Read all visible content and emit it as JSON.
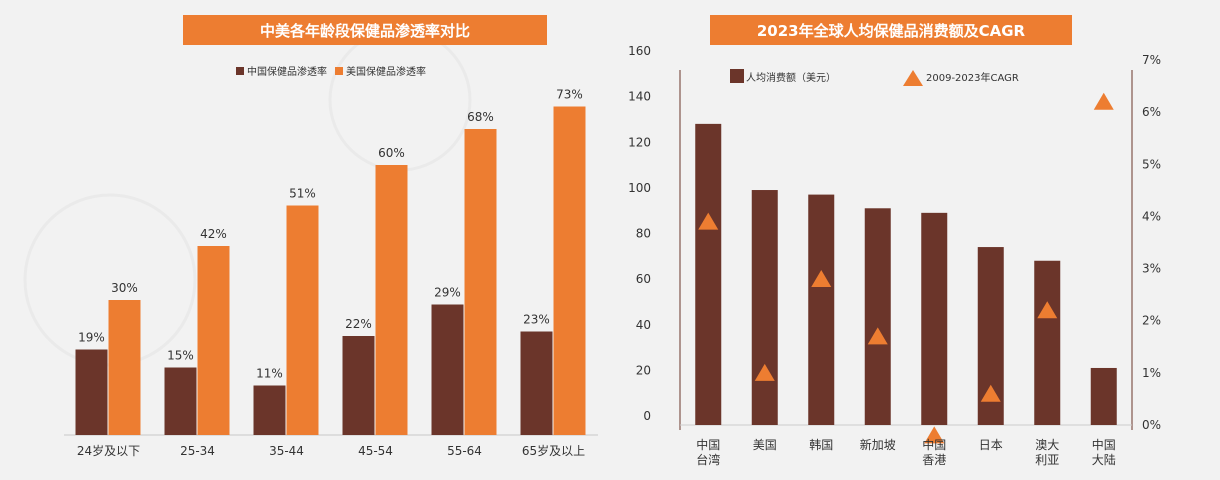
{
  "colors": {
    "china": "#6b352a",
    "usa": "#ed7d31",
    "bg": "#f2f2f2",
    "title_bg": "#ed7d31"
  },
  "chart_data": [
    {
      "type": "bar",
      "title": "中美各年龄段保健品渗透率对比",
      "categories": [
        "24岁及以下",
        "25-34",
        "35-44",
        "45-54",
        "55-64",
        "65岁及以上"
      ],
      "series": [
        {
          "name": "中国保健品渗透率",
          "values": [
            19,
            15,
            11,
            22,
            29,
            23
          ],
          "labels": [
            "19%",
            "15%",
            "11%",
            "22%",
            "29%",
            "23%"
          ]
        },
        {
          "name": "美国保健品渗透率",
          "values": [
            30,
            42,
            51,
            60,
            68,
            73
          ],
          "labels": [
            "30%",
            "42%",
            "51%",
            "60%",
            "68%",
            "73%"
          ]
        }
      ],
      "ylim": [
        0,
        80
      ],
      "legend_position": "top"
    },
    {
      "type": "bar",
      "title": "2023年全球人均保健品消费额及CAGR",
      "categories": [
        "中国\n台湾",
        "美国",
        "韩国",
        "新加坡",
        "中国\n香港",
        "日本",
        "澳大\n利亚",
        "中国\n大陆"
      ],
      "series": [
        {
          "name": "人均消费额（美元）",
          "type": "bar",
          "axis": "left",
          "values": [
            132,
            103,
            101,
            95,
            93,
            78,
            72,
            25
          ]
        },
        {
          "name": "2009-2023年CAGR",
          "type": "scatter",
          "marker": "triangle",
          "axis": "right",
          "values": [
            3.9,
            1.0,
            2.8,
            1.7,
            -0.2,
            0.6,
            2.2,
            6.2
          ]
        }
      ],
      "ylim_left": [
        0,
        160
      ],
      "ylim_right": [
        0,
        7
      ],
      "yticks_left": [
        "0",
        "20",
        "40",
        "60",
        "80",
        "100",
        "120",
        "140",
        "160"
      ],
      "yticks_right": [
        "0%",
        "1%",
        "2%",
        "3%",
        "4%",
        "5%",
        "6%",
        "7%"
      ],
      "legend_position": "top"
    }
  ]
}
